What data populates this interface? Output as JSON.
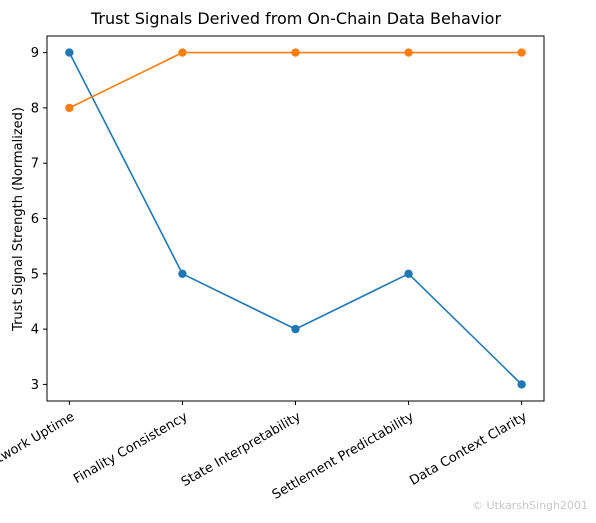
{
  "chart_data": {
    "type": "line",
    "title": "Trust Signals Derived from On-Chain Data Behavior",
    "xlabel": "",
    "ylabel": "Trust Signal Strength (Normalized)",
    "categories": [
      "Network Uptime",
      "Finality Consistency",
      "State Interpretability",
      "Settlement Predictability",
      "Data Context Clarity"
    ],
    "series": [
      {
        "values": [
          9,
          5,
          4,
          5,
          3
        ],
        "color": "#1f77b4"
      },
      {
        "values": [
          8,
          9,
          9,
          9,
          9
        ],
        "color": "#ff7f0e"
      }
    ],
    "ylim": [
      2.7,
      9.3
    ],
    "yticks": [
      3,
      4,
      5,
      6,
      7,
      8,
      9
    ],
    "grid": false,
    "legend": "none",
    "marker": "circle"
  },
  "watermark": "© UtkarshSingh2001"
}
